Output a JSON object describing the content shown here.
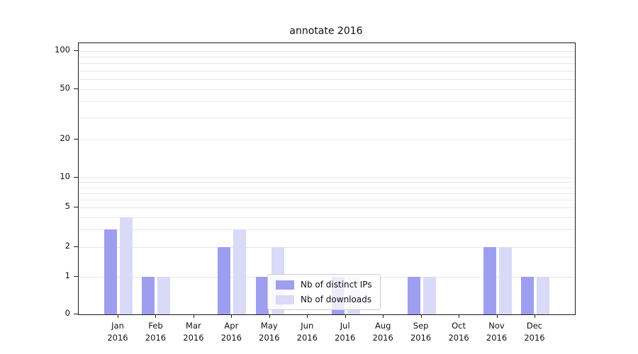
{
  "chart_data": {
    "type": "bar",
    "title": "annotate 2016",
    "yscale": "symlog",
    "grid": true,
    "legend_position": "lower center",
    "categories": [
      "Jan 2016",
      "Feb 2016",
      "Mar 2016",
      "Apr 2016",
      "May 2016",
      "Jun 2016",
      "Jul 2016",
      "Aug 2016",
      "Sep 2016",
      "Oct 2016",
      "Nov 2016",
      "Dec 2016"
    ],
    "series": [
      {
        "name": "Nb of distinct IPs",
        "color": "#9e9ef0",
        "values": [
          3,
          1,
          0,
          2,
          1,
          0,
          1,
          0,
          1,
          0,
          2,
          1
        ]
      },
      {
        "name": "Nb of downloads",
        "color": "#d9d9f8",
        "values": [
          4,
          1,
          0,
          3,
          2,
          0,
          1,
          0,
          1,
          0,
          2,
          1
        ]
      }
    ],
    "yticks": [
      0,
      1,
      2,
      5,
      10,
      20,
      50,
      100
    ],
    "minor_gridlines": [
      1,
      2,
      3,
      4,
      5,
      6,
      7,
      8,
      9,
      10,
      20,
      30,
      40,
      50,
      60,
      70,
      80,
      90,
      100
    ],
    "ylim": [
      0,
      120
    ],
    "xlabel": "",
    "ylabel": ""
  }
}
